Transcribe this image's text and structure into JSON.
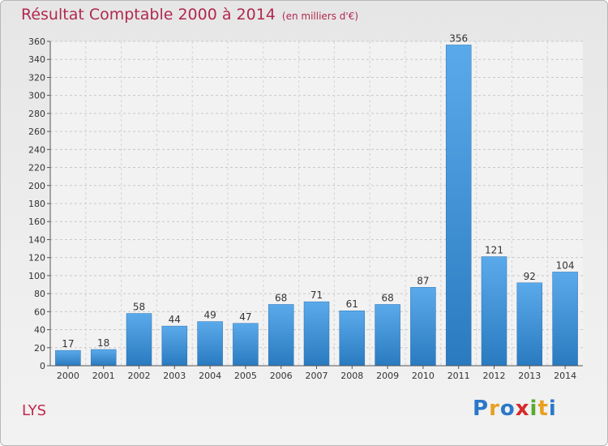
{
  "chart_data": {
    "type": "bar",
    "title": "Résultat Comptable 2000 à 2014",
    "subtitle": "(en milliers d'€)",
    "categories": [
      "2000",
      "2001",
      "2002",
      "2003",
      "2004",
      "2005",
      "2006",
      "2007",
      "2008",
      "2009",
      "2010",
      "2011",
      "2012",
      "2013",
      "2014"
    ],
    "values": [
      17,
      18,
      58,
      44,
      49,
      47,
      68,
      71,
      61,
      68,
      87,
      356,
      121,
      92,
      104
    ],
    "ylim": [
      0,
      360
    ],
    "yticks": [
      0,
      20,
      40,
      60,
      80,
      100,
      120,
      140,
      160,
      180,
      200,
      220,
      240,
      260,
      280,
      300,
      320,
      340,
      360
    ],
    "grid": true,
    "bar_color": "#3d92d8",
    "xlabel": "",
    "ylabel": ""
  },
  "footer": {
    "commune": "LYS",
    "logo_letters": [
      "P",
      "r",
      "o",
      "x",
      "i",
      "t",
      "i"
    ]
  }
}
